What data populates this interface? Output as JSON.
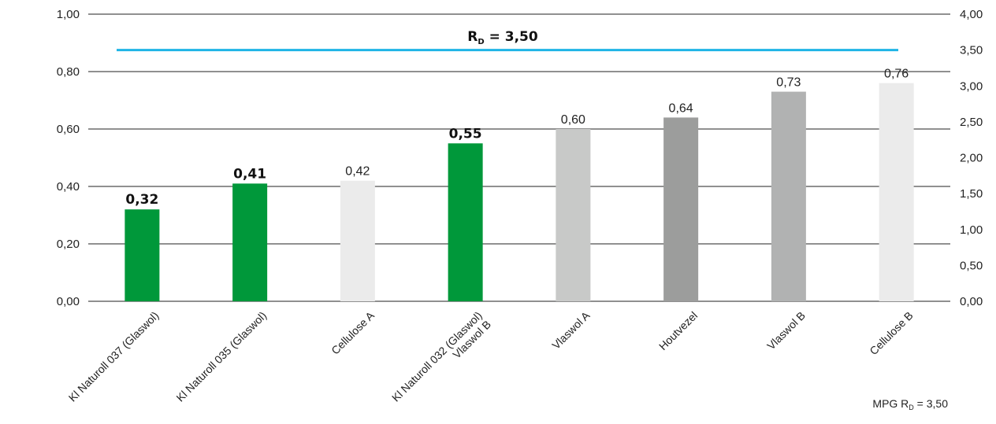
{
  "chart_data": {
    "type": "bar",
    "categories": [
      "Kl Naturoll 037 (Glaswol)",
      "Kl Naturoll 035 (Glaswol)",
      "Cellulose A",
      "Kl Naturoll 032 (Glaswol)\nVlaswol B",
      "Vlaswol A",
      "Houtvezel",
      "Vlaswol B",
      "Cellulose B"
    ],
    "values": [
      0.32,
      0.41,
      0.42,
      0.55,
      0.6,
      0.64,
      0.73,
      0.76
    ],
    "value_labels": [
      "0,32",
      "0,41",
      "0,42",
      "0,55",
      "0,60",
      "0,64",
      "0,73",
      "0,76"
    ],
    "highlighted": [
      true,
      true,
      false,
      true,
      false,
      false,
      false,
      false
    ],
    "bar_colors": [
      "#00983a",
      "#00983a",
      "#ebebeb",
      "#00983a",
      "#c8c9c8",
      "#9c9d9c",
      "#b1b2b2",
      "#ebebeb"
    ],
    "ylim": [
      0,
      1
    ],
    "yticks": [
      "0,00",
      "0,20",
      "0,40",
      "0,60",
      "0,80",
      "1,00"
    ],
    "y2lim": [
      0,
      4
    ],
    "y2ticks": [
      "0,00",
      "0,50",
      "1,00",
      "1,50",
      "2,00",
      "2,50",
      "3,00",
      "3,50",
      "4,00"
    ],
    "grid": true,
    "reference_line": {
      "value": 3.5,
      "axis": "right",
      "label": "R",
      "label_sub": "D",
      "label_value": " = 3,50",
      "color": "#1fb4e6"
    },
    "footnote": {
      "prefix": "MPG R",
      "sub": "D",
      "suffix": " = 3,50"
    }
  }
}
